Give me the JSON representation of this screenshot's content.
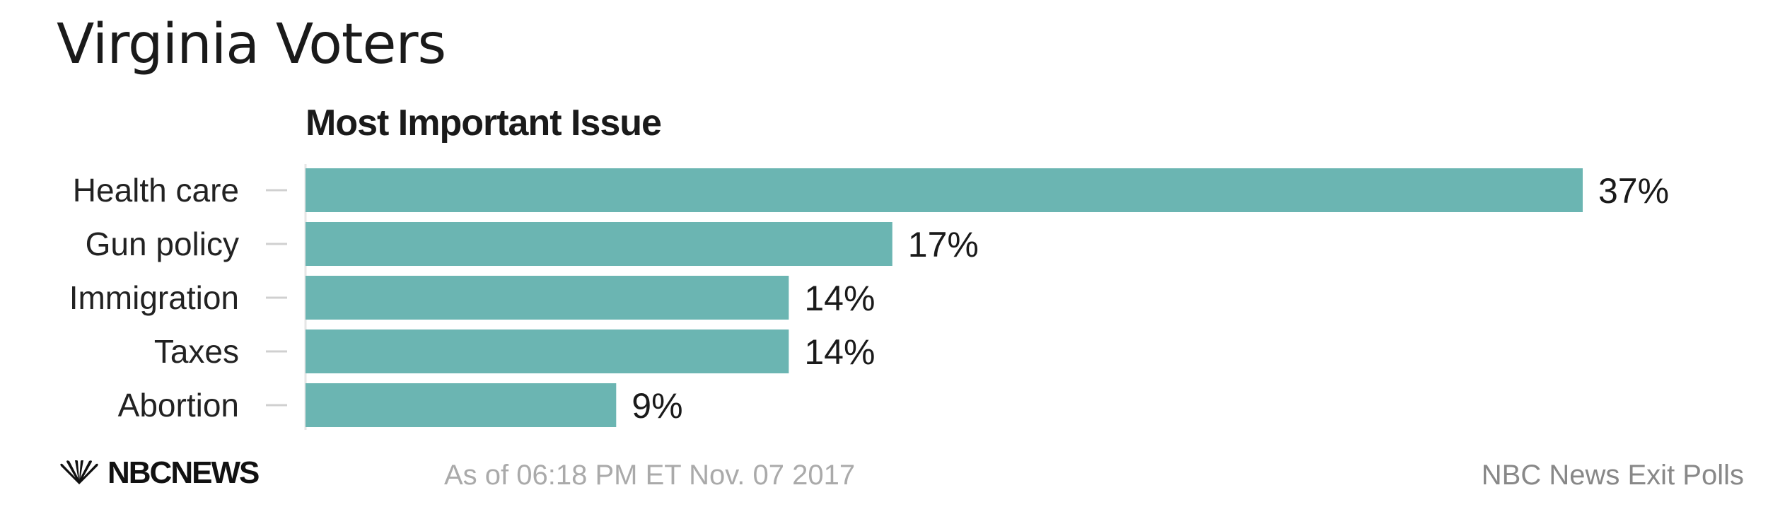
{
  "header": {
    "title": "Virginia Voters",
    "subtitle": "Most Important Issue"
  },
  "chart_data": {
    "type": "bar",
    "orientation": "horizontal",
    "categories": [
      "Health care",
      "Gun policy",
      "Immigration",
      "Taxes",
      "Abortion"
    ],
    "values": [
      37,
      17,
      14,
      14,
      9
    ],
    "value_labels": [
      "37%",
      "17%",
      "14%",
      "14%",
      "9%"
    ],
    "title": "Most Important Issue",
    "xlabel": "",
    "ylabel": "",
    "xlim": [
      0,
      37
    ],
    "grid": false,
    "bar_color": "#6bb5b2"
  },
  "footer": {
    "logo_text": "NBCNEWS",
    "as_of": "As of 06:18 PM ET Nov. 07 2017",
    "source": "NBC News Exit Polls"
  },
  "colors": {
    "bar": "#6bb5b2",
    "tick": "#d0d0d0",
    "axis": "#e6e6e6"
  },
  "icons": {
    "logo": "nbc-peacock-icon"
  }
}
